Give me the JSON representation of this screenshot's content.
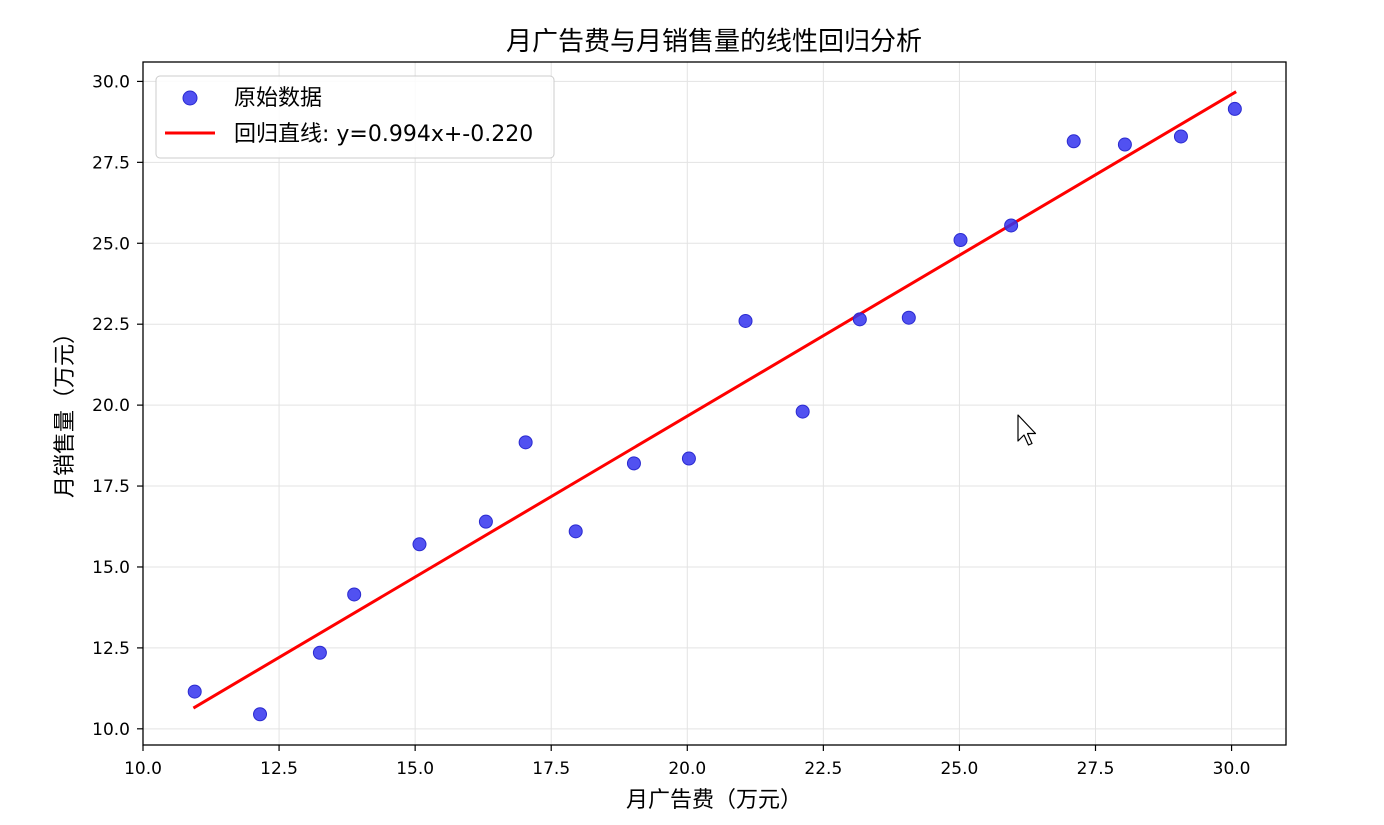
{
  "chart_data": {
    "type": "scatter",
    "title": "月广告费与月销售量的线性回归分析",
    "xlabel": "月广告费（万元）",
    "ylabel": "月销售量（万元）",
    "xlim": [
      10.0,
      31.0
    ],
    "ylim": [
      9.5,
      30.6
    ],
    "xticks": [
      "10.0",
      "12.5",
      "15.0",
      "17.5",
      "20.0",
      "22.5",
      "25.0",
      "27.5",
      "30.0"
    ],
    "yticks": [
      "10.0",
      "12.5",
      "15.0",
      "17.5",
      "20.0",
      "22.5",
      "25.0",
      "27.5",
      "30.0"
    ],
    "grid": true,
    "legend_position": "top-left",
    "series": [
      {
        "name": "原始数据",
        "kind": "scatter",
        "color": "#3333ee",
        "x": [
          10.95,
          12.15,
          13.25,
          13.88,
          15.08,
          16.3,
          17.03,
          17.95,
          19.02,
          20.03,
          21.07,
          22.12,
          23.17,
          24.07,
          25.02,
          25.95,
          27.1,
          28.04,
          29.07,
          30.06
        ],
        "y": [
          11.15,
          10.45,
          12.35,
          14.15,
          15.7,
          16.4,
          18.85,
          16.1,
          18.2,
          18.35,
          22.6,
          19.8,
          22.65,
          22.7,
          25.1,
          25.55,
          28.15,
          28.05,
          28.3,
          29.15
        ]
      },
      {
        "name": "回归直线: y=0.994x+-0.220",
        "kind": "line",
        "color": "#ff0000",
        "slope": 0.994,
        "intercept": -0.22,
        "x": [
          10.95,
          30.06
        ]
      }
    ]
  }
}
